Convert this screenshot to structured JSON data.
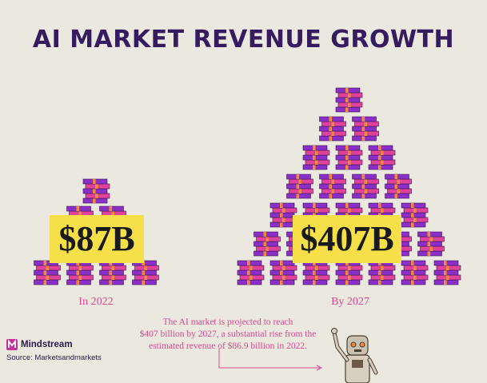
{
  "header": {
    "title": "AI MARKET REVENUE GROWTH"
  },
  "chart_data": {
    "type": "pictogram",
    "categories": [
      "In 2022",
      "By 2027"
    ],
    "values": [
      87,
      407
    ],
    "units": "billion USD",
    "value_labels": [
      "$87B",
      "$407B"
    ],
    "stack_counts": [
      10,
      28
    ]
  },
  "annotation": {
    "lines": [
      "The AI market is projected to reach",
      "$407 billion by 2027, a substantial rise from the",
      "estimated revenue of $86.9 billion in 2022."
    ]
  },
  "brand": {
    "name": "Mindstream",
    "icon": "mindstream-logo-icon"
  },
  "source": {
    "text": "Source: Marketsandmarkets"
  },
  "colors": {
    "background": "#ebe8df",
    "title": "#341c5e",
    "money_purple": "#8b2fc9",
    "money_pink": "#e0439a",
    "money_orange": "#f08a3a",
    "highlight": "#f5e04a",
    "accent_text": "#d9478f"
  },
  "illustration": {
    "icon": "robot-pointing-icon"
  }
}
